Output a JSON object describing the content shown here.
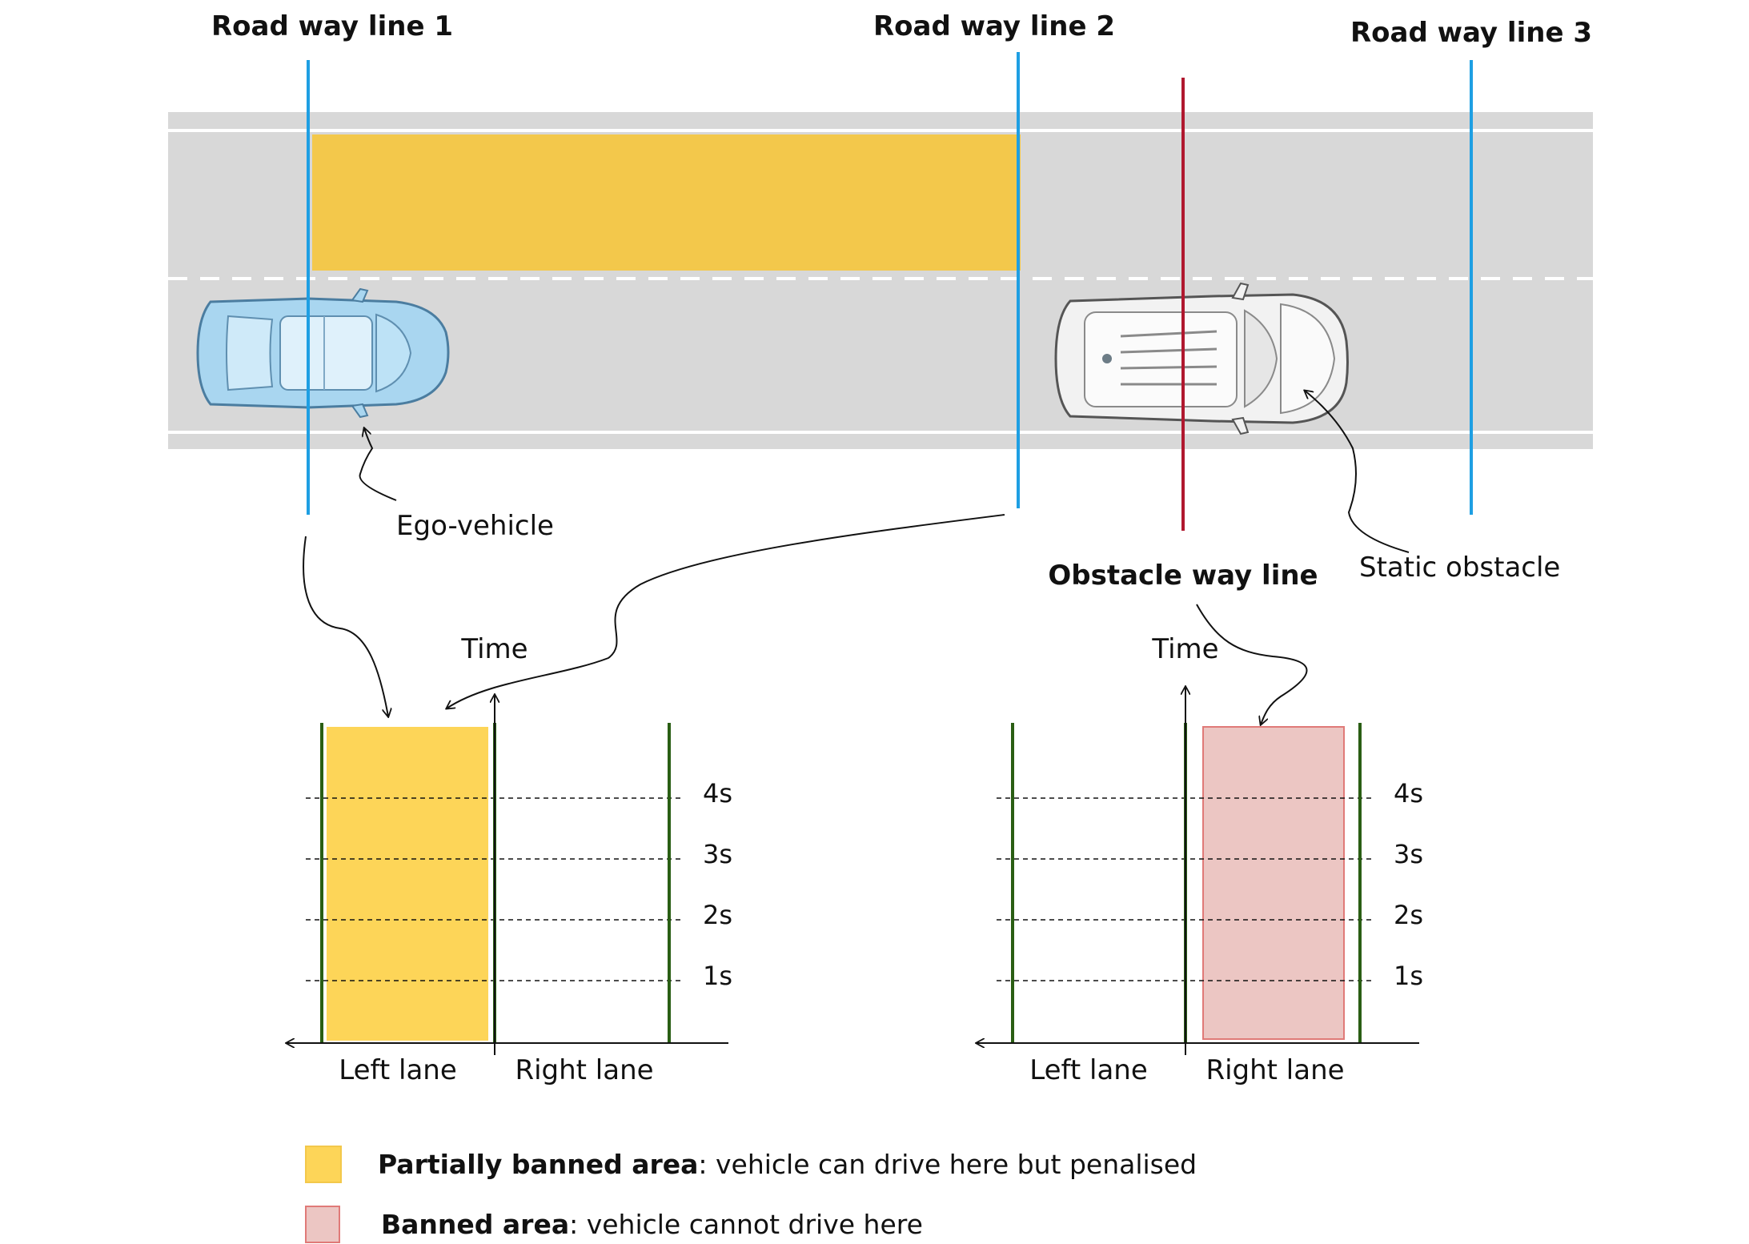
{
  "colors": {
    "road": "#d8d8d8",
    "road_marking": "#ffffff",
    "way_line": "#1e9fe3",
    "obstacle_line": "#b0182f",
    "lane_divider": "#2a5e14",
    "partial_banned_road": "#f3c84b",
    "partial_banned_chart": "#fdd558",
    "banned_fill": "#ecc6c3",
    "banned_stroke": "#e07a78",
    "ego_vehicle": "#a9d6f0",
    "obstacle_vehicle": "#f2f2f2"
  },
  "road_way_lines": [
    {
      "label": "Road way line 1"
    },
    {
      "label": "Road way line 2"
    },
    {
      "label": "Road way line 3"
    }
  ],
  "obstacle_way_line": {
    "label": "Obstacle way line"
  },
  "ego_vehicle": {
    "label": "Ego-vehicle",
    "icon": "car-icon"
  },
  "static_obstacle": {
    "label": "Static obstacle",
    "icon": "suv-icon"
  },
  "charts": [
    {
      "axis_label": "Time",
      "lanes": [
        "Left lane",
        "Right lane"
      ],
      "time_ticks": [
        "4s",
        "3s",
        "2s",
        "1s"
      ],
      "banned_lane": "Left lane",
      "banned_type": "partial"
    },
    {
      "axis_label": "Time",
      "lanes": [
        "Left lane",
        "Right lane"
      ],
      "time_ticks": [
        "4s",
        "3s",
        "2s",
        "1s"
      ],
      "banned_lane": "Right lane",
      "banned_type": "full"
    }
  ],
  "legend": [
    {
      "term": "Partially banned area",
      "description": ": vehicle can drive here but penalised"
    },
    {
      "term": "Banned area",
      "description": ": vehicle cannot drive here"
    }
  ]
}
